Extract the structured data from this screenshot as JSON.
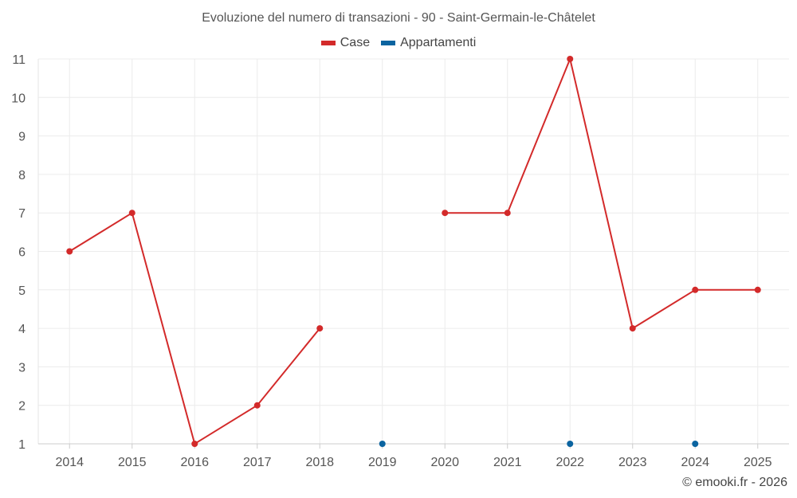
{
  "chart_data": {
    "type": "line",
    "title": "Evoluzione del numero di transazioni - 90 - Saint-Germain-le-Châtelet",
    "xlabel": "",
    "ylabel": "",
    "categories": [
      "2014",
      "2015",
      "2016",
      "2017",
      "2018",
      "2019",
      "2020",
      "2021",
      "2022",
      "2023",
      "2024",
      "2025"
    ],
    "ylim": [
      1,
      11
    ],
    "yticks": [
      "1",
      "2",
      "3",
      "4",
      "5",
      "6",
      "7",
      "8",
      "9",
      "10",
      "11"
    ],
    "grid": true,
    "legend_position": "top-center",
    "series": [
      {
        "name": "Case",
        "color": "#d32a2a",
        "values": [
          6,
          7,
          1,
          2,
          4,
          null,
          7,
          7,
          11,
          4,
          5,
          5
        ]
      },
      {
        "name": "Appartamenti",
        "color": "#0b64a0",
        "values": [
          null,
          null,
          null,
          null,
          null,
          1,
          null,
          null,
          1,
          null,
          1,
          null
        ]
      }
    ]
  },
  "footer": {
    "credit": "© emooki.fr - 2026"
  }
}
